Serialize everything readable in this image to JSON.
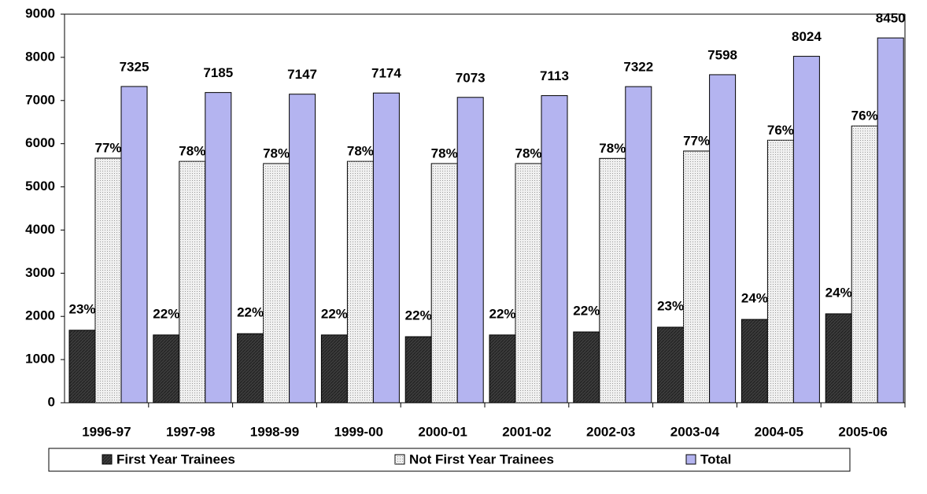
{
  "chart_data": {
    "type": "bar",
    "categories": [
      "1996-97",
      "1997-98",
      "1998-99",
      "1999-00",
      "2000-01",
      "2001-02",
      "2002-03",
      "2003-04",
      "2004-05",
      "2005-06"
    ],
    "series": [
      {
        "name": "First Year Trainees",
        "color": "#3c3c3c",
        "values": [
          1680,
          1570,
          1600,
          1570,
          1530,
          1570,
          1640,
          1750,
          1930,
          2060
        ],
        "share_labels": [
          "23%",
          "22%",
          "22%",
          "22%",
          "22%",
          "22%",
          "22%",
          "23%",
          "24%",
          "24%"
        ]
      },
      {
        "name": "Not First Year Trainees",
        "color": "#f0f0f0",
        "values": [
          5665,
          5590,
          5540,
          5590,
          5540,
          5540,
          5660,
          5830,
          6080,
          6410
        ],
        "share_labels": [
          "77%",
          "78%",
          "78%",
          "78%",
          "78%",
          "78%",
          "78%",
          "77%",
          "76%",
          "76%"
        ]
      },
      {
        "name": "Total",
        "color": "#b4b4f0",
        "values": [
          7325,
          7185,
          7147,
          7174,
          7073,
          7113,
          7322,
          7598,
          8024,
          8450
        ]
      }
    ],
    "ylim": [
      0,
      9000
    ],
    "yticks": [
      0,
      1000,
      2000,
      3000,
      4000,
      5000,
      6000,
      7000,
      8000,
      9000
    ],
    "legend": "bottom"
  }
}
